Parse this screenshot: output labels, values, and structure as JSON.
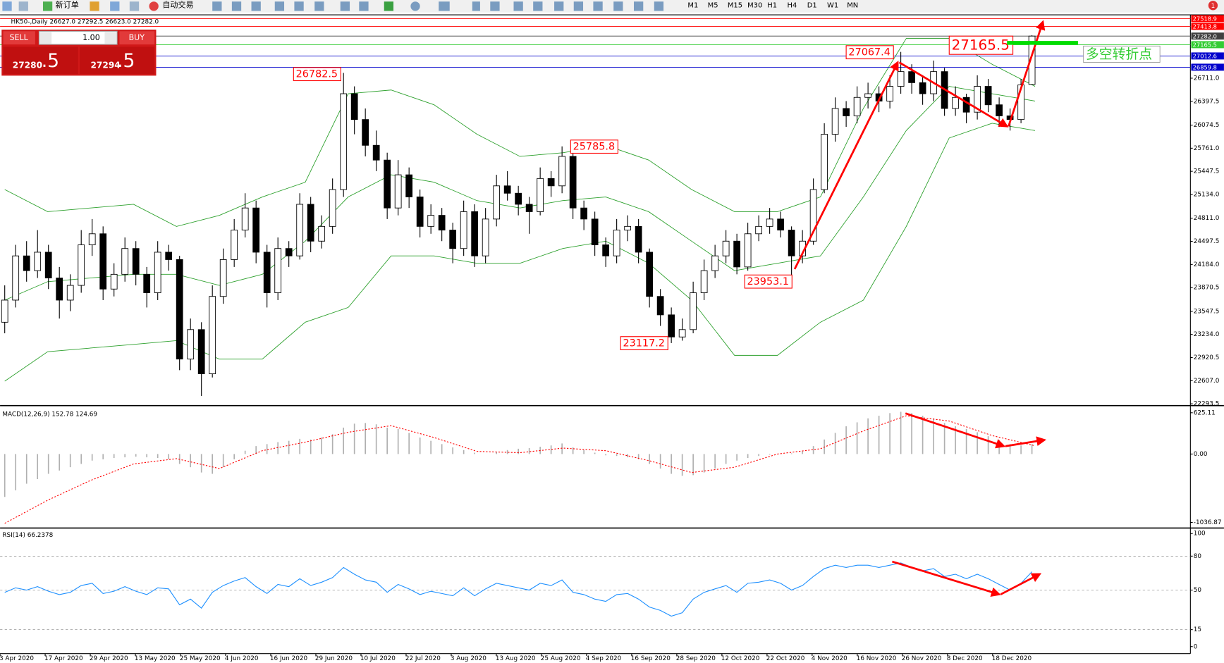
{
  "toolbar": {
    "new_order": "新订单",
    "auto_trading": "自动交易",
    "timeframes": [
      "M1",
      "M5",
      "M15",
      "M30",
      "H1",
      "H4",
      "D1",
      "W1",
      "MN"
    ],
    "alerts": "1"
  },
  "trade_panel": {
    "sell": "SELL",
    "lot": "1.00",
    "buy": "BUY",
    "bid_main": "27280",
    "bid_frac": ".5",
    "ask_main": "27294",
    "ask_frac": ".5"
  },
  "chart_data": [
    {
      "type": "candlestick",
      "title": "HK50-,Daily  26627.0 27292.5 26623.0 27282.0",
      "up_color": "#ffffff",
      "down_color": "#000000",
      "candles": [
        [
          23400,
          23900,
          23250,
          23700
        ],
        [
          23700,
          24450,
          23600,
          24300
        ],
        [
          24300,
          24500,
          23950,
          24100
        ],
        [
          24100,
          24650,
          24000,
          24350
        ],
        [
          24350,
          24450,
          23850,
          24000
        ],
        [
          24000,
          24150,
          23450,
          23700
        ],
        [
          23700,
          24050,
          23550,
          23900
        ],
        [
          23900,
          24650,
          23800,
          24450
        ],
        [
          24450,
          24800,
          24300,
          24600
        ],
        [
          24600,
          24700,
          23700,
          23850
        ],
        [
          23850,
          24200,
          23750,
          24050
        ],
        [
          24050,
          24550,
          23950,
          24400
        ],
        [
          24400,
          24500,
          23900,
          24050
        ],
        [
          24050,
          24150,
          23600,
          23800
        ],
        [
          23800,
          24500,
          23700,
          24350
        ],
        [
          24350,
          24450,
          24100,
          24250
        ],
        [
          24250,
          24300,
          22750,
          22900
        ],
        [
          22900,
          23450,
          22750,
          23300
        ],
        [
          23300,
          23400,
          22400,
          22700
        ],
        [
          22700,
          23900,
          22650,
          23750
        ],
        [
          23750,
          24400,
          23650,
          24250
        ],
        [
          24250,
          24800,
          24150,
          24650
        ],
        [
          24650,
          25150,
          24550,
          24950
        ],
        [
          24950,
          25050,
          24200,
          24350
        ],
        [
          24350,
          24450,
          23600,
          23800
        ],
        [
          23800,
          24550,
          23700,
          24400
        ],
        [
          24400,
          24500,
          24150,
          24300
        ],
        [
          24300,
          25150,
          24250,
          25000
        ],
        [
          25000,
          25100,
          24350,
          24500
        ],
        [
          24500,
          24850,
          24400,
          24700
        ],
        [
          24700,
          25350,
          24600,
          25200
        ],
        [
          25200,
          26782.5,
          25100,
          26500
        ],
        [
          26500,
          26600,
          25950,
          26150
        ],
        [
          26150,
          26300,
          25650,
          25800
        ],
        [
          25800,
          26000,
          25450,
          25600
        ],
        [
          25600,
          25700,
          24800,
          24950
        ],
        [
          24950,
          25600,
          24850,
          25400
        ],
        [
          25400,
          25500,
          24950,
          25100
        ],
        [
          25100,
          25200,
          24550,
          24700
        ],
        [
          24700,
          25000,
          24600,
          24850
        ],
        [
          24850,
          24950,
          24500,
          24650
        ],
        [
          24650,
          24750,
          24200,
          24400
        ],
        [
          24400,
          25050,
          24300,
          24900
        ],
        [
          24900,
          25000,
          24150,
          24300
        ],
        [
          24300,
          24950,
          24200,
          24800
        ],
        [
          24800,
          25400,
          24700,
          25250
        ],
        [
          25250,
          25450,
          25050,
          25150
        ],
        [
          25150,
          25250,
          24850,
          25000
        ],
        [
          25000,
          25100,
          24600,
          24900
        ],
        [
          24900,
          25500,
          24850,
          25350
        ],
        [
          25350,
          25450,
          25100,
          25250
        ],
        [
          25250,
          25785.8,
          25150,
          25650
        ],
        [
          25650,
          25700,
          24800,
          24950
        ],
        [
          24950,
          25050,
          24650,
          24800
        ],
        [
          24800,
          24900,
          24300,
          24450
        ],
        [
          24450,
          24550,
          24150,
          24300
        ],
        [
          24300,
          24800,
          24200,
          24650
        ],
        [
          24650,
          24850,
          24500,
          24700
        ],
        [
          24700,
          24800,
          24200,
          24350
        ],
        [
          24350,
          24400,
          23600,
          23750
        ],
        [
          23750,
          23850,
          23350,
          23500
        ],
        [
          23500,
          23600,
          23117.2,
          23200
        ],
        [
          23200,
          23450,
          23150,
          23300
        ],
        [
          23300,
          23950,
          23250,
          23800
        ],
        [
          23800,
          24250,
          23700,
          24100
        ],
        [
          24100,
          24450,
          24000,
          24300
        ],
        [
          24300,
          24650,
          24200,
          24500
        ],
        [
          24500,
          24600,
          24050,
          24150
        ],
        [
          24150,
          24750,
          24100,
          24600
        ],
        [
          24600,
          24850,
          24500,
          24700
        ],
        [
          24700,
          24950,
          24600,
          24800
        ],
        [
          24800,
          24900,
          24550,
          24650
        ],
        [
          24650,
          24700,
          23953.1,
          24300
        ],
        [
          24300,
          24650,
          24200,
          24500
        ],
        [
          24500,
          25350,
          24450,
          25200
        ],
        [
          25200,
          26100,
          25150,
          25950
        ],
        [
          25950,
          26450,
          25850,
          26300
        ],
        [
          26300,
          26400,
          26050,
          26200
        ],
        [
          26200,
          26600,
          26100,
          26450
        ],
        [
          26450,
          26650,
          26300,
          26500
        ],
        [
          26500,
          26600,
          26250,
          26400
        ],
        [
          26400,
          26750,
          26300,
          26600
        ],
        [
          26600,
          27067.4,
          26500,
          26800
        ],
        [
          26800,
          26900,
          26500,
          26650
        ],
        [
          26650,
          26750,
          26350,
          26500
        ],
        [
          26500,
          26950,
          26400,
          26800
        ],
        [
          26800,
          26850,
          26200,
          26300
        ],
        [
          26300,
          26600,
          26200,
          26450
        ],
        [
          26450,
          26500,
          26100,
          26250
        ],
        [
          26250,
          26750,
          26150,
          26600
        ],
        [
          26600,
          26700,
          26250,
          26350
        ],
        [
          26350,
          26450,
          26050,
          26200
        ],
        [
          26200,
          26300,
          26000,
          26150
        ],
        [
          26150,
          26700,
          26100,
          26620
        ],
        [
          26627,
          27292.5,
          26623,
          27282
        ]
      ],
      "series": [
        {
          "color": "#2ca02c",
          "values": [
            25200,
            24900,
            24950,
            25000,
            24700,
            24850,
            25100,
            25300,
            26500,
            26550,
            26350,
            25950,
            25650,
            25700,
            25800,
            25600,
            25200,
            24900,
            24900,
            25100,
            26300,
            27250,
            27250,
            26900,
            26600
          ]
        },
        {
          "color": "#2ca02c",
          "values": [
            23700,
            23950,
            24000,
            24050,
            24050,
            23900,
            24050,
            24500,
            25100,
            25400,
            25300,
            25050,
            24950,
            25050,
            25100,
            24900,
            24500,
            24100,
            24200,
            24300,
            25100,
            26000,
            26600,
            26500,
            26400
          ]
        },
        {
          "color": "#2ca02c",
          "values": [
            22600,
            23000,
            23050,
            23100,
            23150,
            22900,
            22900,
            23400,
            23600,
            24300,
            24300,
            24200,
            24200,
            24400,
            24500,
            24200,
            23700,
            22950,
            22950,
            23400,
            23700,
            24700,
            25900,
            26100,
            26000
          ]
        }
      ],
      "price_lines": [
        {
          "value": 27518.9,
          "color": "#ff0000"
        },
        {
          "value": 27413.8,
          "color": "#ff0000"
        },
        {
          "value": 27282,
          "label": "27282.0",
          "color": "#404040"
        },
        {
          "value": 27165.5,
          "color": "#33cc33"
        },
        {
          "value": 27012.6,
          "color": "#0000cc"
        },
        {
          "value": 26859.8,
          "color": "#0000cc"
        }
      ],
      "annotations": [
        26782.5,
        25785.8,
        23117.2,
        23953.1,
        27067.4,
        27165.5
      ],
      "note": "多空转折点",
      "ylim": [
        22290,
        27560
      ],
      "yticks": [
        {
          "value": 26711,
          "label": "26711.0"
        },
        26397.5,
        26074.5,
        {
          "value": 25761,
          "label": "25761.0"
        },
        25447.5,
        {
          "value": 25134,
          "label": "25134.0"
        },
        {
          "value": 24811,
          "label": "24811.0"
        },
        24497.5,
        {
          "value": 24184,
          "label": "24184.0"
        },
        23870.5,
        23547.5,
        {
          "value": 23234,
          "label": "23234.0"
        },
        22920.5,
        {
          "value": 22607,
          "label": "22607.0"
        },
        22293.5
      ],
      "x_labels": [
        "3 Apr 2020",
        "17 Apr 2020",
        "29 Apr 2020",
        "13 May 2020",
        "25 May 2020",
        "4 Jun 2020",
        "16 Jun 2020",
        "29 Jun 2020",
        "10 Jul 2020",
        "22 Jul 2020",
        "3 Aug 2020",
        "13 Aug 2020",
        "25 Aug 2020",
        "4 Sep 2020",
        "16 Sep 2020",
        "28 Sep 2020",
        "12 Oct 2020",
        "22 Oct 2020",
        "4 Nov 2020",
        "16 Nov 2020",
        "26 Nov 2020",
        "8 Dec 2020",
        "18 Dec 2020"
      ]
    },
    {
      "type": "macd",
      "title": "MACD(12,26,9) 152.78 124.69",
      "series": [
        {
          "color": "#b0b0b0",
          "values": [
            -650,
            -550,
            -450,
            -380,
            -300,
            -250,
            -200,
            -150,
            -100,
            -80,
            -60,
            -50,
            -40,
            -50,
            -60,
            -80,
            -150,
            -200,
            -280,
            -300,
            -200,
            -80,
            50,
            120,
            150,
            180,
            200,
            230,
            220,
            250,
            300,
            400,
            460,
            470,
            450,
            400,
            380,
            320,
            250,
            200,
            150,
            100,
            60,
            20,
            0,
            30,
            60,
            80,
            90,
            110,
            130,
            160,
            100,
            60,
            20,
            -20,
            -30,
            -50,
            -80,
            -150,
            -220,
            -300,
            -330,
            -320,
            -280,
            -220,
            -150,
            -100,
            -60,
            -30,
            -10,
            0,
            10,
            40,
            120,
            220,
            320,
            420,
            480,
            540,
            580,
            620,
            640,
            620,
            580,
            540,
            470,
            420,
            380,
            330,
            270,
            210,
            150,
            130,
            152.78
          ]
        },
        {
          "color": "#ff0000",
          "values": [
            -1050,
            -700,
            -400,
            -150,
            -70,
            -220,
            50,
            180,
            330,
            430,
            250,
            40,
            20,
            90,
            50,
            -100,
            -280,
            -200,
            0,
            80,
            350,
            580,
            500,
            280,
            124.69
          ]
        }
      ],
      "ylim": [
        -1110,
        710
      ],
      "yticks": [
        625.11,
        {
          "value": 0,
          "label": "0.00"
        },
        -1036.87
      ]
    },
    {
      "type": "line",
      "title": "RSI(14) 66.2378",
      "color": "#1e90ff",
      "values": [
        48,
        52,
        50,
        53,
        49,
        46,
        48,
        54,
        56,
        47,
        49,
        53,
        49,
        46,
        52,
        51,
        37,
        42,
        34,
        48,
        54,
        58,
        61,
        53,
        47,
        55,
        53,
        60,
        54,
        57,
        61,
        70,
        64,
        59,
        57,
        48,
        55,
        51,
        46,
        49,
        47,
        45,
        52,
        45,
        51,
        56,
        54,
        52,
        50,
        56,
        54,
        59,
        48,
        46,
        42,
        40,
        46,
        47,
        42,
        35,
        32,
        27,
        30,
        42,
        48,
        51,
        54,
        48,
        56,
        57,
        59,
        56,
        50,
        54,
        62,
        69,
        72,
        70,
        72,
        72,
        70,
        72,
        74,
        70,
        67,
        69,
        62,
        64,
        60,
        64,
        60,
        55,
        50,
        56,
        66.2378
      ],
      "ylim": [
        0,
        100
      ],
      "yticks": [
        100,
        80,
        50,
        15,
        0
      ]
    }
  ]
}
